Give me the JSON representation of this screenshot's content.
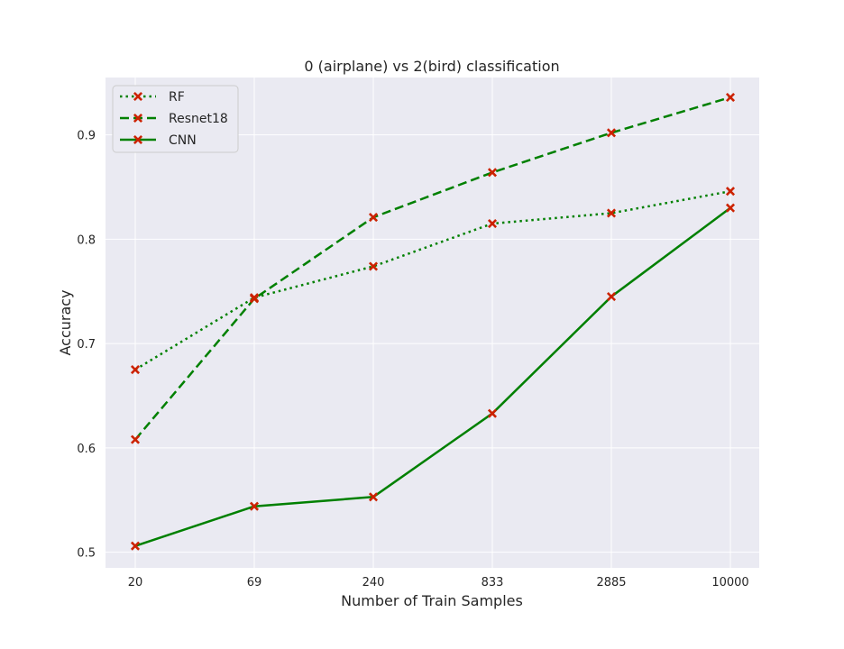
{
  "chart_data": {
    "type": "line",
    "title": "0 (airplane) vs 2(bird) classification",
    "xlabel": "Number of Train Samples",
    "ylabel": "Accuracy",
    "categories": [
      "20",
      "69",
      "240",
      "833",
      "2885",
      "10000"
    ],
    "ylim": [
      0.485,
      0.955
    ],
    "yticks": [
      0.5,
      0.6,
      0.7,
      0.8,
      0.9
    ],
    "ytick_labels": [
      "0.5",
      "0.6",
      "0.7",
      "0.8",
      "0.9"
    ],
    "grid": true,
    "legend_position": "upper-left",
    "line_color": "#008000",
    "marker_color": "#cc2200",
    "background": "#eaeaf2",
    "series": [
      {
        "name": "RF",
        "style": "dotted",
        "values": [
          0.675,
          0.744,
          0.774,
          0.815,
          0.825,
          0.846
        ]
      },
      {
        "name": "Resnet18",
        "style": "dashed",
        "values": [
          0.608,
          0.743,
          0.821,
          0.864,
          0.902,
          0.936
        ]
      },
      {
        "name": "CNN",
        "style": "solid",
        "values": [
          0.506,
          0.544,
          0.553,
          0.633,
          0.745,
          0.83
        ]
      }
    ]
  }
}
